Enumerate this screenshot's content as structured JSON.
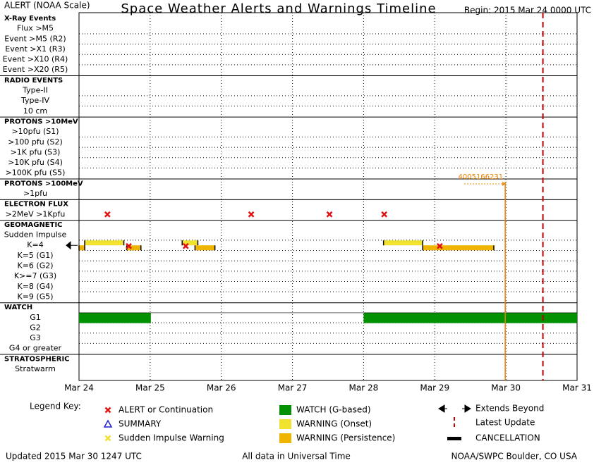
{
  "header": {
    "left": "ALERT (NOAA Scale)",
    "title": "Space Weather Alerts and Warnings Timeline",
    "begin": "Begin: 2015 Mar 24 0000 UTC"
  },
  "chart_data": {
    "type": "timeline",
    "xlim": [
      0,
      7
    ],
    "xticks": [
      {
        "value": 0,
        "label": "Mar 24"
      },
      {
        "value": 1,
        "label": "Mar 25"
      },
      {
        "value": 2,
        "label": "Mar 26"
      },
      {
        "value": 3,
        "label": "Mar 27"
      },
      {
        "value": 4,
        "label": "Mar 28"
      },
      {
        "value": 5,
        "label": "Mar 29"
      },
      {
        "value": 6,
        "label": "Mar 30"
      },
      {
        "value": 7,
        "label": "Mar 31"
      }
    ],
    "latest_update": 6.52,
    "annotation": {
      "x": 5.99,
      "label": "4005166231"
    },
    "colors": {
      "alert": "#e01010",
      "summary": "#2020d0",
      "sudden": "#f0e030",
      "watch": "#009000",
      "onset": "#f2e230",
      "persistence": "#f0b400",
      "latest": "#c00000",
      "annotation": "#f08000"
    },
    "sections": [
      {
        "title": "X-Ray Events",
        "rows": [
          {
            "label": "Flux >M5"
          },
          {
            "label": "Event >M5 (R2)"
          },
          {
            "label": "Event >X1 (R3)"
          },
          {
            "label": "Event >X10 (R4)"
          },
          {
            "label": "Event >X20 (R5)"
          }
        ]
      },
      {
        "title": "RADIO EVENTS",
        "rows": [
          {
            "label": "Type-II"
          },
          {
            "label": "Type-IV"
          },
          {
            "label": "10 cm"
          }
        ]
      },
      {
        "title": "PROTONS >10MeV",
        "rows": [
          {
            "label": ">10pfu (S1)"
          },
          {
            "label": ">100 pfu (S2)"
          },
          {
            "label": ">1K pfu (S3)"
          },
          {
            "label": ">10K pfu (S4)"
          },
          {
            "label": ">100K pfu (S5)"
          }
        ]
      },
      {
        "title": "PROTONS >100MeV",
        "rows": [
          {
            "label": ">1pfu"
          }
        ]
      },
      {
        "title": "ELECTRON FLUX",
        "rows": [
          {
            "label": ">2MeV >1Kpfu",
            "alerts": [
              0.4,
              2.42,
              3.52,
              4.29
            ]
          }
        ]
      },
      {
        "title": "GEOMAGNETIC",
        "rows": [
          {
            "label": "Sudden Impulse"
          },
          {
            "label": "K=4",
            "alerts": [
              0.7,
              1.5,
              5.07
            ],
            "onset": [
              [
                0.08,
                0.63
              ],
              [
                1.45,
                1.67
              ],
              [
                4.28,
                4.83
              ]
            ],
            "persistence": [
              [
                0,
                0.08
              ],
              [
                0.67,
                0.87
              ],
              [
                1.63,
                1.91
              ],
              [
                4.83,
                5.83
              ]
            ]
          },
          {
            "label": "K=5 (G1)"
          },
          {
            "label": "K=6 (G2)"
          },
          {
            "label": "K>=7 (G3)"
          },
          {
            "label": "K=8 (G4)"
          },
          {
            "label": "K=9 (G5)"
          }
        ]
      },
      {
        "title": "WATCH",
        "rows": [
          {
            "label": "G1",
            "watch": [
              [
                0,
                1.01
              ],
              [
                4,
                7
              ]
            ]
          },
          {
            "label": "G2"
          },
          {
            "label": "G3"
          },
          {
            "label": "G4 or greater"
          }
        ]
      },
      {
        "title": "STRATOSPHERIC",
        "rows": [
          {
            "label": "Stratwarm"
          }
        ]
      }
    ]
  },
  "legend": {
    "title": "Legend Key:",
    "items": [
      "ALERT or Continuation",
      "SUMMARY",
      "Sudden Impulse Warning",
      "WATCH (G-based)",
      "WARNING (Onset)",
      "WARNING (Persistence)",
      "Extends Beyond",
      "Latest Update",
      "CANCELLATION"
    ]
  },
  "footer": {
    "updated": "Updated 2015 Mar 30 1247 UTC",
    "note": "All data in Universal Time",
    "source": "NOAA/SWPC Boulder, CO USA"
  }
}
